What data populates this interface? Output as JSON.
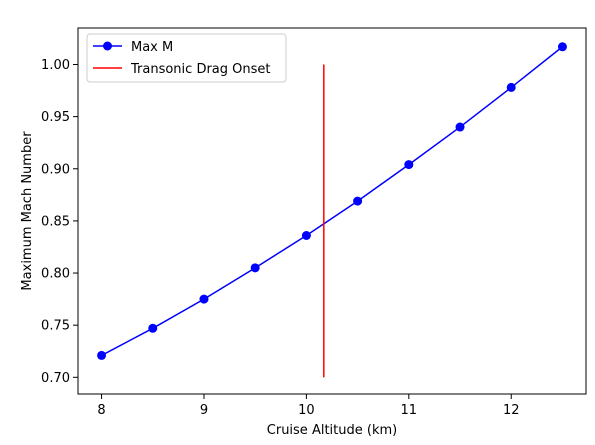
{
  "chart_data": {
    "type": "line",
    "title": "",
    "xlabel": "Cruise Altitude (km)",
    "ylabel": "Maximum Mach Number",
    "xlim": [
      7.77,
      12.73
    ],
    "ylim": [
      0.684,
      1.035
    ],
    "xticks": [
      8,
      9,
      10,
      11,
      12
    ],
    "yticks": [
      0.7,
      0.75,
      0.8,
      0.85,
      0.9,
      0.95,
      1.0
    ],
    "grid": false,
    "legend_position": "top-left",
    "series": [
      {
        "name": "Max M",
        "kind": "line-markers",
        "color": "#0000ff",
        "x": [
          8,
          8.5,
          9,
          9.5,
          10,
          10.5,
          11,
          11.5,
          12,
          12.5
        ],
        "y": [
          0.721,
          0.747,
          0.775,
          0.805,
          0.836,
          0.869,
          0.904,
          0.94,
          0.978,
          1.017
        ]
      },
      {
        "name": "Transonic Drag Onset",
        "kind": "vertical-line",
        "color": "#ff0000",
        "x": 10.17,
        "y_range": [
          0.7,
          1.0
        ]
      }
    ]
  }
}
